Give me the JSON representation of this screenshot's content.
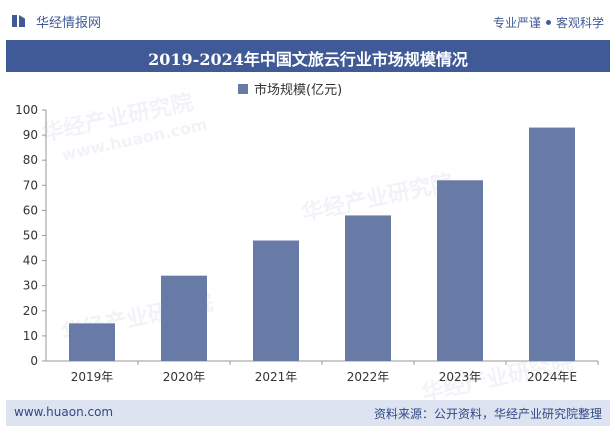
{
  "header": {
    "brand": "华经情报网",
    "tagline_left": "专业严谨",
    "tagline_right": "客观科学"
  },
  "watermark": "华经产业研究院",
  "watermark_url": "www.huaon.com",
  "footer": {
    "website": "www.huaon.com",
    "source": "资料来源：公开资料，华经产业研究院整理"
  },
  "colors": {
    "brand_blue": "#3f5a96",
    "bar": "#687aa6",
    "footer_bg": "#dde3f0"
  },
  "chart_data": {
    "type": "bar",
    "title": "2019-2024年中国文旅云行业市场规模情况",
    "categories": [
      "2019年",
      "2020年",
      "2021年",
      "2022年",
      "2023年",
      "2024年E"
    ],
    "series": [
      {
        "name": "市场规模(亿元)",
        "values": [
          15,
          34,
          48,
          58,
          72,
          93
        ]
      }
    ],
    "ylim": [
      0,
      100
    ],
    "yticks": [
      0,
      10,
      20,
      30,
      40,
      50,
      60,
      70,
      80,
      90,
      100
    ],
    "xlabel": "",
    "ylabel": "",
    "grid": false,
    "legend": "top-center"
  }
}
